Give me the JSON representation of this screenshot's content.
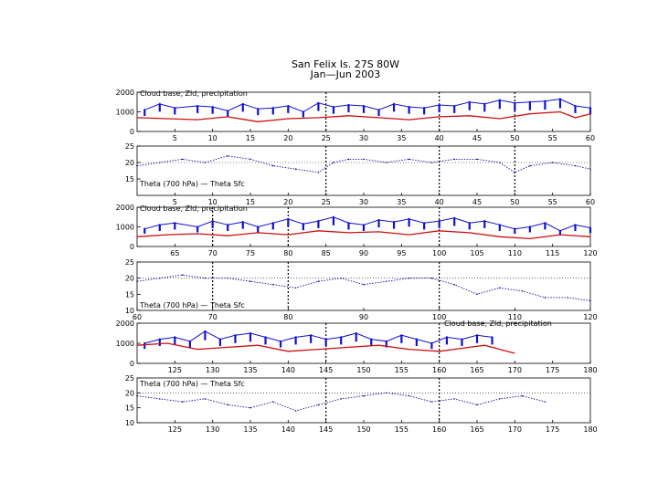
{
  "title_line1": "San Felix Is. 27S 80W",
  "title_line2": "Jan—Jun 2003",
  "colors": {
    "cloud": "#1010d0",
    "zld": "#cc1010",
    "theta": "#1010a0",
    "axis": "#000000"
  },
  "cloud_label": "Cloud base, Zld, precipitation",
  "theta_label": "Theta (700 hPa) — Theta Sfc",
  "chart_data": [
    {
      "type": "line",
      "name": "cloud-1",
      "title": "Cloud base, Zld, precipitation",
      "xlim": [
        0,
        60
      ],
      "ylim": [
        0,
        2000
      ],
      "xticks": [
        5,
        10,
        15,
        20,
        25,
        30,
        35,
        40,
        45,
        50,
        55,
        60
      ],
      "yticks": [
        0,
        1000,
        2000
      ],
      "marked_days": [
        25,
        40,
        50
      ],
      "zld": {
        "x": [
          0,
          4,
          8,
          12,
          16,
          20,
          24,
          28,
          32,
          36,
          40,
          44,
          48,
          52,
          56,
          58,
          60
        ],
        "y": [
          700,
          650,
          600,
          750,
          500,
          650,
          700,
          800,
          700,
          600,
          750,
          800,
          650,
          900,
          1000,
          700,
          900
        ]
      },
      "cloud_base": {
        "x": [
          1,
          3,
          5,
          8,
          10,
          12,
          14,
          16,
          18,
          20,
          22,
          24,
          26,
          28,
          30,
          32,
          34,
          36,
          38,
          40,
          42,
          44,
          46,
          48,
          50,
          52,
          54,
          56,
          58,
          60
        ],
        "y": [
          1100,
          1400,
          1200,
          1300,
          1250,
          1050,
          1400,
          1150,
          1200,
          1300,
          1000,
          1450,
          1250,
          1350,
          1300,
          1100,
          1400,
          1250,
          1200,
          1350,
          1300,
          1500,
          1400,
          1600,
          1450,
          1500,
          1550,
          1650,
          1300,
          1200
        ]
      }
    },
    {
      "type": "line",
      "name": "theta-1",
      "title": "Theta (700 hPa) — Theta Sfc",
      "xlim": [
        0,
        60
      ],
      "ylim": [
        10,
        25
      ],
      "xticks": [
        5,
        10,
        15,
        20,
        25,
        30,
        35,
        40,
        45,
        50,
        55,
        60
      ],
      "yticks": [
        15,
        20,
        25
      ],
      "marked_days": [
        25,
        40,
        50
      ],
      "series": [
        {
          "name": "theta-diff",
          "x": [
            0,
            3,
            6,
            9,
            12,
            15,
            18,
            21,
            24,
            26,
            28,
            30,
            33,
            36,
            39,
            42,
            45,
            48,
            50,
            52,
            55,
            58,
            60
          ],
          "y": [
            19,
            20,
            21,
            20,
            22,
            21,
            19,
            18,
            17,
            20,
            21,
            21,
            20,
            21,
            20,
            21,
            21,
            20,
            17,
            19,
            20,
            19,
            18
          ]
        }
      ]
    },
    {
      "type": "line",
      "name": "cloud-2",
      "title": "Cloud base, Zld, precipitation",
      "xlim": [
        60,
        120
      ],
      "ylim": [
        0,
        2000
      ],
      "xticks": [
        65,
        70,
        75,
        80,
        85,
        90,
        95,
        100,
        105,
        110,
        115,
        120
      ],
      "yticks": [
        0,
        1000,
        2000
      ],
      "marked_days": [
        70,
        80,
        100
      ],
      "zld": {
        "x": [
          60,
          64,
          68,
          72,
          76,
          80,
          84,
          88,
          92,
          96,
          100,
          104,
          108,
          112,
          116,
          120
        ],
        "y": [
          500,
          600,
          650,
          550,
          700,
          600,
          800,
          700,
          750,
          600,
          800,
          700,
          500,
          400,
          600,
          500
        ]
      },
      "cloud_base": {
        "x": [
          61,
          63,
          65,
          68,
          70,
          72,
          74,
          76,
          78,
          80,
          82,
          84,
          86,
          88,
          90,
          92,
          94,
          96,
          98,
          100,
          102,
          104,
          106,
          108,
          110,
          112,
          114,
          116,
          118,
          120
        ],
        "y": [
          900,
          1100,
          1200,
          1000,
          1300,
          1100,
          1250,
          1000,
          1200,
          1400,
          1150,
          1300,
          1500,
          1200,
          1100,
          1350,
          1250,
          1400,
          1200,
          1300,
          1450,
          1200,
          1300,
          1100,
          900,
          1000,
          1200,
          800,
          1100,
          950
        ]
      }
    },
    {
      "type": "line",
      "name": "theta-2",
      "title": "Theta (700 hPa) — Theta Sfc",
      "xlim": [
        60,
        120
      ],
      "ylim": [
        10,
        25
      ],
      "xticks": [
        60,
        70,
        80,
        90,
        100,
        110,
        120
      ],
      "yticks": [
        10,
        15,
        20,
        25
      ],
      "marked_days": [
        70,
        80,
        100
      ],
      "series": [
        {
          "name": "theta-diff",
          "x": [
            60,
            63,
            66,
            69,
            72,
            75,
            78,
            81,
            84,
            87,
            90,
            93,
            96,
            99,
            102,
            105,
            108,
            111,
            114,
            117,
            120
          ],
          "y": [
            19,
            20,
            21,
            20,
            20,
            19,
            18,
            17,
            19,
            20,
            18,
            19,
            20,
            20,
            18,
            15,
            17,
            16,
            14,
            14,
            13
          ]
        }
      ]
    },
    {
      "type": "line",
      "name": "cloud-3",
      "title": "Cloud base, Zld, precipitation",
      "xlim": [
        120,
        180
      ],
      "ylim": [
        0,
        2000
      ],
      "xticks": [
        125,
        130,
        135,
        140,
        145,
        150,
        155,
        160,
        165,
        170,
        175,
        180
      ],
      "yticks": [
        0,
        1000,
        2000
      ],
      "marked_days": [
        145,
        160
      ],
      "zld": {
        "x": [
          120,
          124,
          128,
          132,
          136,
          140,
          144,
          148,
          152,
          156,
          160,
          164,
          166,
          168,
          170
        ],
        "y": [
          900,
          1000,
          700,
          800,
          900,
          600,
          700,
          800,
          900,
          700,
          600,
          800,
          900,
          700,
          500
        ]
      },
      "cloud_base": {
        "x": [
          121,
          123,
          125,
          127,
          129,
          131,
          133,
          135,
          137,
          139,
          141,
          143,
          145,
          147,
          149,
          151,
          153,
          155,
          157,
          159,
          161,
          163,
          165,
          167
        ],
        "y": [
          1000,
          1200,
          1300,
          1100,
          1600,
          1200,
          1400,
          1500,
          1300,
          1100,
          1300,
          1400,
          1200,
          1300,
          1500,
          1200,
          1100,
          1400,
          1200,
          1000,
          1300,
          1200,
          1400,
          1300
        ]
      }
    },
    {
      "type": "line",
      "name": "theta-3",
      "title": "Theta (700 hPa) — Theta Sfc",
      "xlim": [
        120,
        180
      ],
      "ylim": [
        10,
        25
      ],
      "xticks": [
        125,
        130,
        135,
        140,
        145,
        150,
        155,
        160,
        165,
        170,
        175,
        180
      ],
      "yticks": [
        10,
        15,
        20,
        25
      ],
      "marked_days": [
        145,
        160
      ],
      "series": [
        {
          "name": "theta-diff",
          "x": [
            120,
            123,
            126,
            129,
            132,
            135,
            138,
            141,
            144,
            147,
            150,
            153,
            156,
            159,
            162,
            165,
            168,
            171,
            174
          ],
          "y": [
            19,
            18,
            17,
            18,
            16,
            15,
            17,
            14,
            16,
            18,
            19,
            20,
            19,
            17,
            18,
            16,
            18,
            19,
            17
          ]
        }
      ]
    }
  ]
}
